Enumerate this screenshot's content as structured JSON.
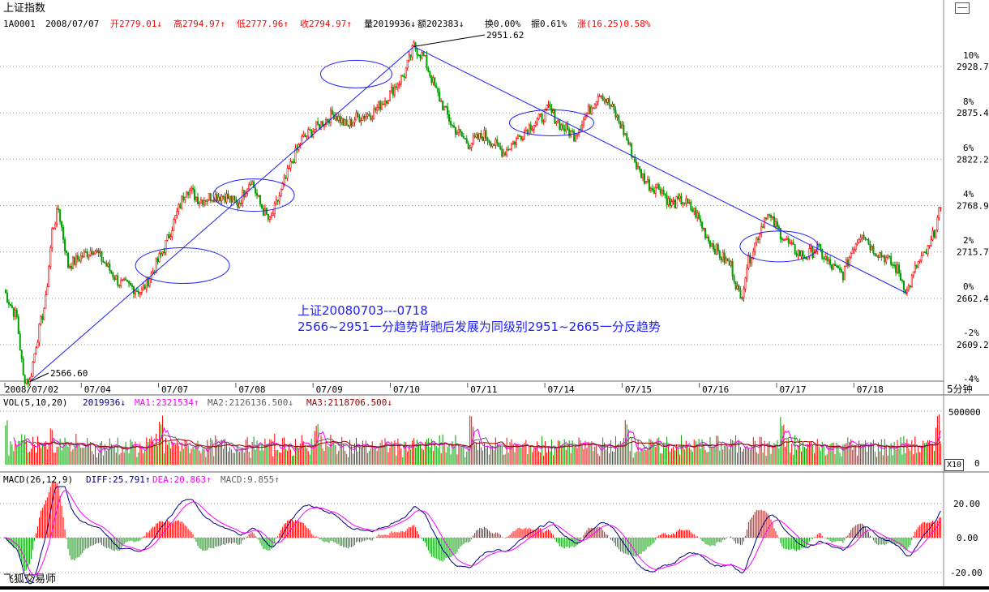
{
  "header": {
    "title": "上证指数",
    "code": "1A0001",
    "date": "2008/07/07",
    "open": "开2779.01↓",
    "high": "高2794.97↑",
    "low": "低2777.96↑",
    "close": "收2794.97↑",
    "volume": "量2019936↓",
    "amount": "额202383↓",
    "turnover": "换0.00%",
    "amplitude": "振0.61%",
    "change": "涨(16.25)0.58%"
  },
  "colors": {
    "up": "#ff0000",
    "down": "#00a000",
    "line": "#2020ff",
    "ma1": "#ff00ff",
    "ma2": "#606060",
    "ma3": "#a00000",
    "diff": "#000080",
    "dea": "#ff00ff",
    "text_blue": "#2020ff",
    "grid": "#888888"
  },
  "annotation": {
    "line1": "上证20080703---0718",
    "line2": "2566~2951一分趋势背驰后发展为同级别2951~2665一分反趋势"
  },
  "watermark": "飞狐交易师",
  "period_button": "5分钟",
  "x10_button": "X10",
  "vol_panel": {
    "title": "VOL(5,10,20)",
    "vol": "2019936↓",
    "ma1": "MA1:2321534↑",
    "ma2": "MA2:2126136.500↓",
    "ma3": "MA3:2118706.500↓",
    "ticks": [
      "500000",
      "0"
    ]
  },
  "macd_panel": {
    "title": "MACD(26,12,9)",
    "diff": "DIFF:25.791↑",
    "dea": "DEA:20.863↑",
    "macd": "MACD:9.855↑",
    "ticks": [
      "20.00",
      "0.00",
      "-20.00"
    ]
  },
  "chart_data": {
    "type": "candlestick",
    "price_ticks": [
      "2928.7",
      "2875.4",
      "2822.2",
      "2768.9",
      "2715.7",
      "2662.4",
      "2609.2"
    ],
    "pct_ticks": [
      "10%",
      "8%",
      "6%",
      "4%",
      "2%",
      "0%",
      "-2%",
      "-4%"
    ],
    "x_labels": [
      "2008/07/02",
      "07/04",
      "07/07",
      "07/08",
      "07/09",
      "07/10",
      "07/11",
      "07/14",
      "07/15",
      "07/16",
      "07/17",
      "07/18"
    ],
    "low_label": "2566.60",
    "high_label": "2951.62",
    "path": [
      [
        0,
        2672
      ],
      [
        4,
        2655
      ],
      [
        8,
        2640
      ],
      [
        12,
        2572
      ],
      [
        16,
        2566.6
      ],
      [
        20,
        2610
      ],
      [
        26,
        2660
      ],
      [
        30,
        2740
      ],
      [
        34,
        2765
      ],
      [
        40,
        2700
      ],
      [
        48,
        2710
      ],
      [
        56,
        2720
      ],
      [
        64,
        2700
      ],
      [
        72,
        2680
      ],
      [
        80,
        2675
      ],
      [
        86,
        2670
      ],
      [
        92,
        2690
      ],
      [
        100,
        2720
      ],
      [
        108,
        2760
      ],
      [
        114,
        2790
      ],
      [
        122,
        2775
      ],
      [
        130,
        2780
      ],
      [
        138,
        2780
      ],
      [
        146,
        2770
      ],
      [
        154,
        2800
      ],
      [
        160,
        2770
      ],
      [
        166,
        2750
      ],
      [
        172,
        2780
      ],
      [
        180,
        2820
      ],
      [
        186,
        2845
      ],
      [
        196,
        2860
      ],
      [
        206,
        2875
      ],
      [
        214,
        2860
      ],
      [
        220,
        2870
      ],
      [
        230,
        2875
      ],
      [
        240,
        2895
      ],
      [
        250,
        2920
      ],
      [
        256,
        2951.62
      ],
      [
        262,
        2940
      ],
      [
        270,
        2900
      ],
      [
        280,
        2860
      ],
      [
        290,
        2840
      ],
      [
        300,
        2850
      ],
      [
        306,
        2840
      ],
      [
        312,
        2830
      ],
      [
        320,
        2845
      ],
      [
        328,
        2860
      ],
      [
        336,
        2870
      ],
      [
        340,
        2880
      ],
      [
        348,
        2860
      ],
      [
        356,
        2850
      ],
      [
        366,
        2880
      ],
      [
        372,
        2900
      ],
      [
        380,
        2880
      ],
      [
        388,
        2850
      ],
      [
        396,
        2810
      ],
      [
        404,
        2790
      ],
      [
        410,
        2790
      ],
      [
        416,
        2770
      ],
      [
        424,
        2775
      ],
      [
        432,
        2760
      ],
      [
        440,
        2730
      ],
      [
        448,
        2710
      ],
      [
        454,
        2700
      ],
      [
        460,
        2660
      ],
      [
        464,
        2700
      ],
      [
        470,
        2730
      ],
      [
        476,
        2760
      ],
      [
        484,
        2740
      ],
      [
        492,
        2720
      ],
      [
        500,
        2710
      ],
      [
        508,
        2720
      ],
      [
        516,
        2700
      ],
      [
        524,
        2690
      ],
      [
        530,
        2720
      ],
      [
        536,
        2740
      ],
      [
        542,
        2720
      ],
      [
        550,
        2710
      ],
      [
        558,
        2695
      ],
      [
        564,
        2670
      ],
      [
        570,
        2700
      ],
      [
        578,
        2720
      ],
      [
        584,
        2760
      ]
    ],
    "trendlines": [
      {
        "from": [
          16,
          2566.6
        ],
        "to": [
          256,
          2951.62
        ]
      },
      {
        "from": [
          256,
          2951.62
        ],
        "to": [
          564,
          2668
        ]
      }
    ],
    "ellipses": [
      {
        "cx": 76,
        "cy": 2700,
        "rx": 58,
        "ry": 22
      },
      {
        "cx": 156,
        "cy": 2781,
        "rx": 50,
        "ry": 20
      },
      {
        "cx": 220,
        "cy": 2920,
        "rx": 44,
        "ry": 17
      },
      {
        "cx": 342,
        "cy": 2864,
        "rx": 52,
        "ry": 16
      },
      {
        "cx": 484,
        "cy": 2722,
        "rx": 48,
        "ry": 19
      }
    ]
  }
}
